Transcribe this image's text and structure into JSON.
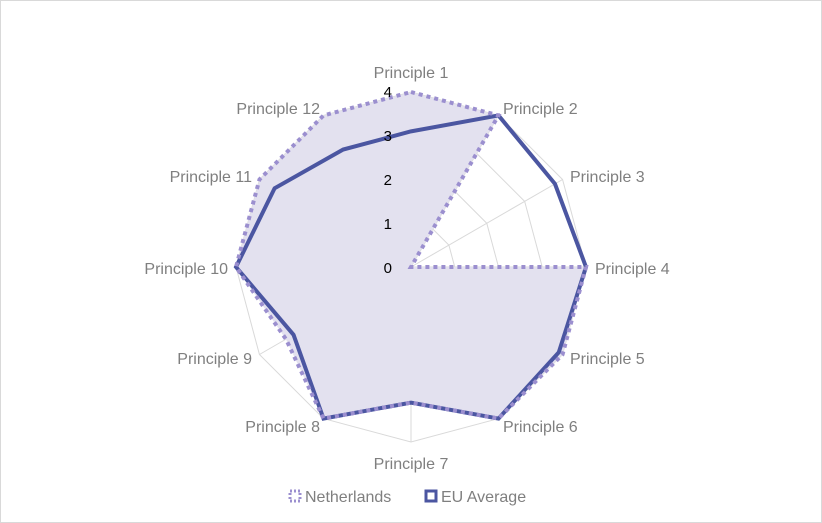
{
  "chart_data": {
    "type": "radar",
    "title": "",
    "categories": [
      "Principle 1",
      "Principle 2",
      "Principle 3",
      "Principle 4",
      "Principle 5",
      "Principle 6",
      "Principle 7",
      "Principle 8",
      "Principle 9",
      "Principle 10",
      "Principle 11",
      "Principle 12"
    ],
    "rlim": [
      0,
      4
    ],
    "ticks": [
      "0",
      "1",
      "2",
      "3",
      "4"
    ],
    "series": [
      {
        "name": "Netherlands",
        "values": [
          4,
          4,
          0,
          4,
          4,
          4,
          3.1,
          4,
          3.3,
          4,
          4,
          4
        ],
        "color": "#9b8fcf",
        "fill": "#e3e1ef",
        "style": "dotted"
      },
      {
        "name": "EU Average",
        "values": [
          3.1,
          4,
          3.8,
          4,
          3.9,
          4,
          3.1,
          4,
          3.1,
          4,
          3.6,
          3.1
        ],
        "color": "#4b56a1",
        "style": "solid"
      }
    ],
    "legend": [
      "Netherlands",
      "EU Average"
    ],
    "legend_position": "bottom"
  }
}
